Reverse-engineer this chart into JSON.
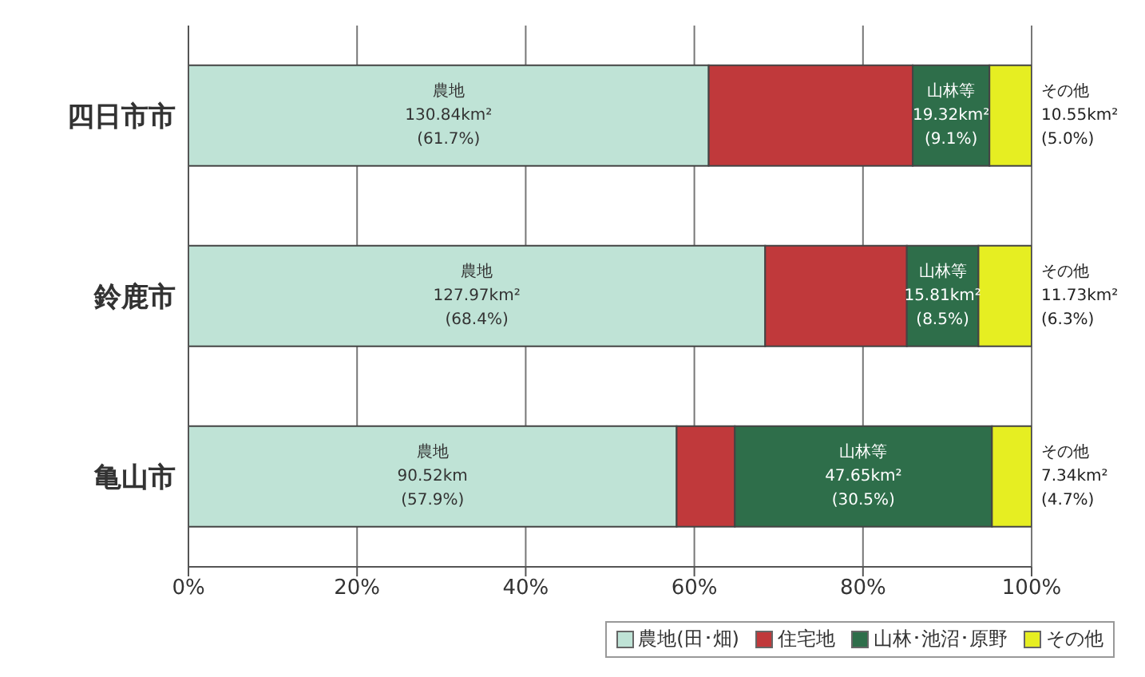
{
  "chart_data": {
    "type": "bar",
    "orientation": "horizontal",
    "stacked": true,
    "categories": [
      "四日市市",
      "鈴鹿市",
      "亀山市"
    ],
    "series": [
      {
        "name": "農地(田･畑)",
        "color": "#bfe3d6",
        "values": [
          61.7,
          68.4,
          57.9
        ],
        "value_labels": [
          "農地\n130.84km²\n(61.7%)",
          "農地\n127.97km²\n(68.4%)",
          "農地\n90.52km\n(57.9%)"
        ]
      },
      {
        "name": "住宅地",
        "color": "#c0393b",
        "values": [
          24.2,
          16.8,
          6.9
        ]
      },
      {
        "name": "山林･池沼･原野",
        "color": "#2e6e4a",
        "values": [
          9.1,
          8.5,
          30.5
        ],
        "value_labels": [
          "山林等\n19.32km²\n(9.1%)",
          "山林等\n15.81km²\n(8.5%)",
          "山林等\n47.65km²\n(30.5%)"
        ]
      },
      {
        "name": "その他",
        "color": "#e6ee22",
        "values": [
          5.0,
          6.3,
          4.7
        ],
        "value_labels": [
          "その他\n10.55km²\n(5.0%)",
          "その他\n11.73km²\n(6.3%)",
          "その他\n7.34km²\n(4.7%)"
        ]
      }
    ],
    "xlim": [
      0,
      100
    ],
    "xticks": [
      {
        "value": 0,
        "label": "0%"
      },
      {
        "value": 20,
        "label": "20%"
      },
      {
        "value": 40,
        "label": "40%"
      },
      {
        "value": 60,
        "label": "60%"
      },
      {
        "value": 80,
        "label": "80%"
      },
      {
        "value": 100,
        "label": "100%"
      }
    ],
    "grid": "x",
    "legend": "bottom right"
  }
}
